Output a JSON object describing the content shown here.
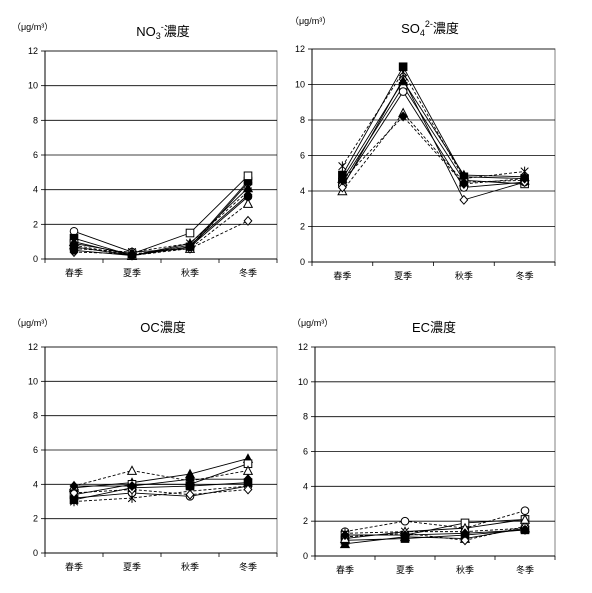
{
  "chart_data": [
    {
      "type": "line",
      "title": "NO3-濃度",
      "title_main": "NO",
      "title_sub": "3",
      "title_sup": "-",
      "title_tail": "濃度",
      "unit": "（μg/m³）",
      "categories": [
        "春季",
        "夏季",
        "秋季",
        "冬季"
      ],
      "ylim": [
        0,
        12
      ],
      "yticks": [
        0,
        2,
        4,
        6,
        8,
        10,
        12
      ],
      "grid": true,
      "series": [
        {
          "marker": "circle-open",
          "dash": false,
          "values": [
            1.6,
            0.4,
            0.6,
            4.4
          ]
        },
        {
          "marker": "square-filled",
          "dash": false,
          "values": [
            1.2,
            0.2,
            0.7,
            4.5
          ]
        },
        {
          "marker": "square-open",
          "dash": false,
          "values": [
            0.9,
            0.3,
            1.5,
            4.8
          ]
        },
        {
          "marker": "triangle-filled",
          "dash": false,
          "values": [
            1.0,
            0.2,
            0.9,
            4.1
          ]
        },
        {
          "marker": "triangle-open",
          "dash": true,
          "values": [
            0.8,
            0.2,
            0.6,
            3.2
          ]
        },
        {
          "marker": "diamond-open",
          "dash": true,
          "values": [
            0.4,
            0.3,
            0.6,
            2.2
          ]
        },
        {
          "marker": "diamond-filled",
          "dash": false,
          "values": [
            0.7,
            0.2,
            0.8,
            3.7
          ]
        },
        {
          "marker": "star",
          "dash": true,
          "values": [
            0.6,
            0.4,
            0.9,
            3.9
          ]
        },
        {
          "marker": "circle-filled",
          "dash": false,
          "values": [
            0.5,
            0.2,
            0.7,
            3.6
          ]
        }
      ]
    },
    {
      "type": "line",
      "title": "SO42-濃度",
      "title_main": "SO",
      "title_sub": "4",
      "title_sup": "2-",
      "title_tail": "濃度",
      "unit": "（μg/m³）",
      "categories": [
        "春季",
        "夏季",
        "秋季",
        "冬季"
      ],
      "ylim": [
        0,
        12
      ],
      "yticks": [
        0,
        2,
        4,
        6,
        8,
        10,
        12
      ],
      "grid": true,
      "series": [
        {
          "marker": "square-filled",
          "dash": false,
          "values": [
            4.9,
            11.0,
            4.8,
            4.7
          ]
        },
        {
          "marker": "square-open",
          "dash": false,
          "values": [
            4.5,
            9.9,
            4.6,
            4.4
          ]
        },
        {
          "marker": "circle-open",
          "dash": false,
          "values": [
            4.3,
            9.6,
            4.2,
            4.5
          ]
        },
        {
          "marker": "triangle-open",
          "dash": true,
          "values": [
            4.0,
            8.4,
            4.5,
            4.6
          ]
        },
        {
          "marker": "diamond-open",
          "dash": false,
          "values": [
            4.2,
            10.3,
            3.5,
            4.5
          ]
        },
        {
          "marker": "star",
          "dash": true,
          "values": [
            5.4,
            10.7,
            4.7,
            5.1
          ]
        },
        {
          "marker": "triangle-filled",
          "dash": false,
          "values": [
            4.7,
            10.2,
            4.9,
            4.8
          ]
        },
        {
          "marker": "diamond-filled",
          "dash": true,
          "values": [
            4.6,
            8.2,
            4.4,
            4.7
          ]
        }
      ]
    },
    {
      "type": "line",
      "title": "OC濃度",
      "title_main": "OC",
      "title_sub": "",
      "title_sup": "",
      "title_tail": "濃度",
      "unit": "（μg/m³）",
      "categories": [
        "春季",
        "夏季",
        "秋季",
        "冬季"
      ],
      "ylim": [
        0,
        12
      ],
      "yticks": [
        0,
        2,
        4,
        6,
        8,
        10,
        12
      ],
      "grid": true,
      "series": [
        {
          "marker": "triangle-filled",
          "dash": false,
          "values": [
            3.8,
            4.1,
            4.6,
            5.5
          ]
        },
        {
          "marker": "square-open",
          "dash": false,
          "values": [
            3.4,
            4.0,
            4.0,
            5.2
          ]
        },
        {
          "marker": "triangle-open",
          "dash": true,
          "values": [
            3.9,
            4.8,
            4.2,
            4.8
          ]
        },
        {
          "marker": "circle-open",
          "dash": false,
          "values": [
            3.2,
            3.5,
            3.3,
            3.9
          ]
        },
        {
          "marker": "star",
          "dash": true,
          "values": [
            3.0,
            3.2,
            3.6,
            3.9
          ]
        },
        {
          "marker": "square-filled",
          "dash": false,
          "values": [
            3.1,
            3.8,
            3.9,
            4.1
          ]
        },
        {
          "marker": "diamond-open",
          "dash": true,
          "values": [
            3.5,
            3.7,
            3.4,
            3.7
          ]
        },
        {
          "marker": "diamond-filled",
          "dash": false,
          "values": [
            3.9,
            3.9,
            4.3,
            4.3
          ]
        }
      ]
    },
    {
      "type": "line",
      "title": "EC濃度",
      "title_main": "EC",
      "title_sub": "",
      "title_sup": "",
      "title_tail": "濃度",
      "unit": "（μg/m³）",
      "categories": [
        "春季",
        "夏季",
        "秋季",
        "冬季"
      ],
      "ylim": [
        0,
        12
      ],
      "yticks": [
        0,
        2,
        4,
        6,
        8,
        10,
        12
      ],
      "grid": true,
      "series": [
        {
          "marker": "circle-open",
          "dash": true,
          "values": [
            1.4,
            2.0,
            1.6,
            2.6
          ]
        },
        {
          "marker": "square-open",
          "dash": false,
          "values": [
            1.2,
            1.2,
            1.9,
            2.1
          ]
        },
        {
          "marker": "triangle-filled",
          "dash": false,
          "values": [
            0.7,
            1.1,
            1.0,
            1.6
          ]
        },
        {
          "marker": "square-filled",
          "dash": false,
          "values": [
            0.9,
            1.0,
            1.2,
            1.5
          ]
        },
        {
          "marker": "diamond-open",
          "dash": true,
          "values": [
            1.1,
            1.3,
            0.9,
            1.7
          ]
        },
        {
          "marker": "star",
          "dash": true,
          "values": [
            1.3,
            1.4,
            1.4,
            1.6
          ]
        },
        {
          "marker": "triangle-open",
          "dash": false,
          "values": [
            1.0,
            1.4,
            1.6,
            2.1
          ]
        },
        {
          "marker": "diamond-filled",
          "dash": false,
          "values": [
            1.2,
            1.2,
            1.3,
            1.5
          ]
        }
      ]
    }
  ]
}
